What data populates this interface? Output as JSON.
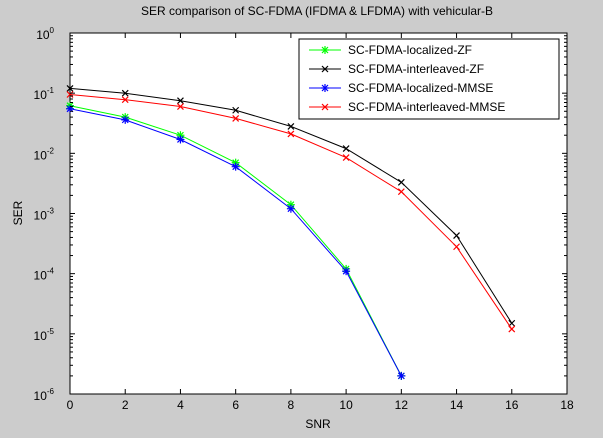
{
  "chart_data": {
    "type": "line",
    "title": "SER comparison of SC-FDMA (IFDMA & LFDMA) with vehicular-B",
    "xlabel": "SNR",
    "ylabel": "SER",
    "xlim": [
      0,
      18
    ],
    "ylim": [
      1e-06,
      1
    ],
    "yscale": "log",
    "x_ticks": [
      0,
      2,
      4,
      6,
      8,
      10,
      12,
      14,
      16,
      18
    ],
    "y_ticks": [
      {
        "exp": 0,
        "value": 1
      },
      {
        "exp": -1,
        "value": 0.1
      },
      {
        "exp": -2,
        "value": 0.01
      },
      {
        "exp": -3,
        "value": 0.001
      },
      {
        "exp": -4,
        "value": 0.0001
      },
      {
        "exp": -5,
        "value": 1e-05
      },
      {
        "exp": -6,
        "value": 1e-06
      }
    ],
    "y_tick_base": "10",
    "grid": false,
    "legend_position": "top-right",
    "series": [
      {
        "name": "SC-FDMA-localized-ZF",
        "color": "#00ff00",
        "marker": "asterisk",
        "x": [
          0,
          2,
          4,
          6,
          8,
          10,
          12
        ],
        "y": [
          0.062,
          0.04,
          0.02,
          0.007,
          0.0014,
          0.00012,
          2e-06
        ]
      },
      {
        "name": "SC-FDMA-interleaved-ZF",
        "color": "#000000",
        "marker": "x",
        "x": [
          0,
          2,
          4,
          6,
          8,
          10,
          12,
          14,
          16
        ],
        "y": [
          0.12,
          0.1,
          0.075,
          0.052,
          0.028,
          0.012,
          0.0033,
          0.00043,
          1.5e-05
        ]
      },
      {
        "name": "SC-FDMA-localized-MMSE",
        "color": "#0000ff",
        "marker": "asterisk",
        "x": [
          0,
          2,
          4,
          6,
          8,
          10,
          12
        ],
        "y": [
          0.055,
          0.036,
          0.017,
          0.006,
          0.0012,
          0.00011,
          2e-06
        ]
      },
      {
        "name": "SC-FDMA-interleaved-MMSE",
        "color": "#ff0000",
        "marker": "x",
        "x": [
          0,
          2,
          4,
          6,
          8,
          10,
          12,
          14,
          16
        ],
        "y": [
          0.095,
          0.078,
          0.06,
          0.038,
          0.021,
          0.0085,
          0.0023,
          0.00028,
          1.2e-05
        ]
      }
    ]
  }
}
